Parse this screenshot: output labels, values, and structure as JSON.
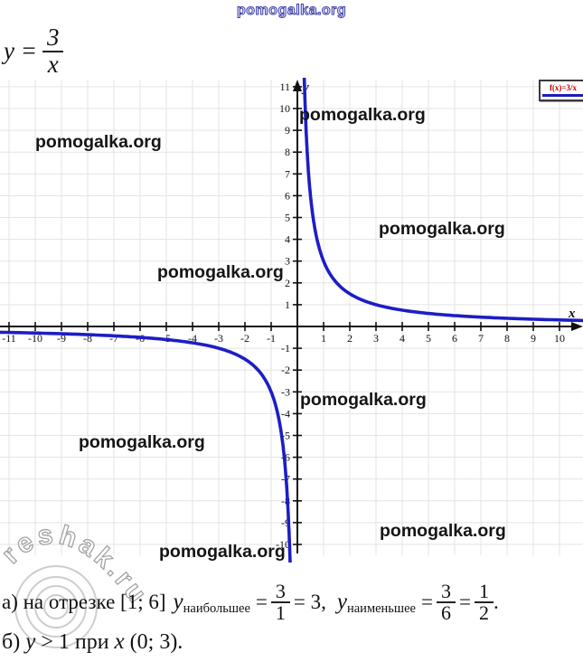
{
  "watermark": {
    "site": "pomogalka.org",
    "reshak": "reshak.ru"
  },
  "formula": {
    "lhs": "y =",
    "numerator": "3",
    "denominator": "x"
  },
  "legend": {
    "label": "f(x)=3/x"
  },
  "chart_data": {
    "type": "line",
    "title": "",
    "function_label": "f(x)=3/x",
    "expression": "y = 3/x",
    "k": 3,
    "xlabel": "x",
    "ylabel": "y",
    "grid": true,
    "xlim": [
      -11.35,
      10.9
    ],
    "ylim": [
      -10.83,
      11.41
    ],
    "x_ticks": [
      -11,
      -10,
      -9,
      -8,
      -7,
      -6,
      -5,
      -4,
      -3,
      -2,
      -1,
      1,
      2,
      3,
      4,
      5,
      6,
      7,
      8,
      9,
      10
    ],
    "y_ticks": [
      -10,
      -9,
      -8,
      -7,
      -6,
      -5,
      -4,
      -3,
      -2,
      -1,
      1,
      2,
      3,
      4,
      5,
      6,
      7,
      8,
      9,
      10,
      11
    ],
    "curve_color": "#1d1dc6",
    "legend_position": "top-right",
    "key_points": [
      {
        "x": 1,
        "y": 3
      },
      {
        "x": 3,
        "y": 1
      },
      {
        "x": 6,
        "y": 0.5
      }
    ]
  },
  "solution": {
    "line_a": {
      "prefix": "а) на отрезке [1; 6]",
      "var_y1": "y",
      "sub_max": "наибольшее",
      "eq1": "=",
      "frac1": {
        "num": "3",
        "den": "1"
      },
      "mid": "= 3,",
      "var_y2": "y",
      "sub_min": "наименьшее",
      "eq2": "=",
      "frac2": {
        "num": "3",
        "den": "6"
      },
      "eq3": "=",
      "frac3": {
        "num": "1",
        "den": "2"
      },
      "period": "."
    },
    "line_b": {
      "prefix": "б)",
      "var_y": "y",
      "rel": "> 1",
      "word": "при",
      "var_x": "x",
      "interval": "(0; 3)."
    }
  }
}
